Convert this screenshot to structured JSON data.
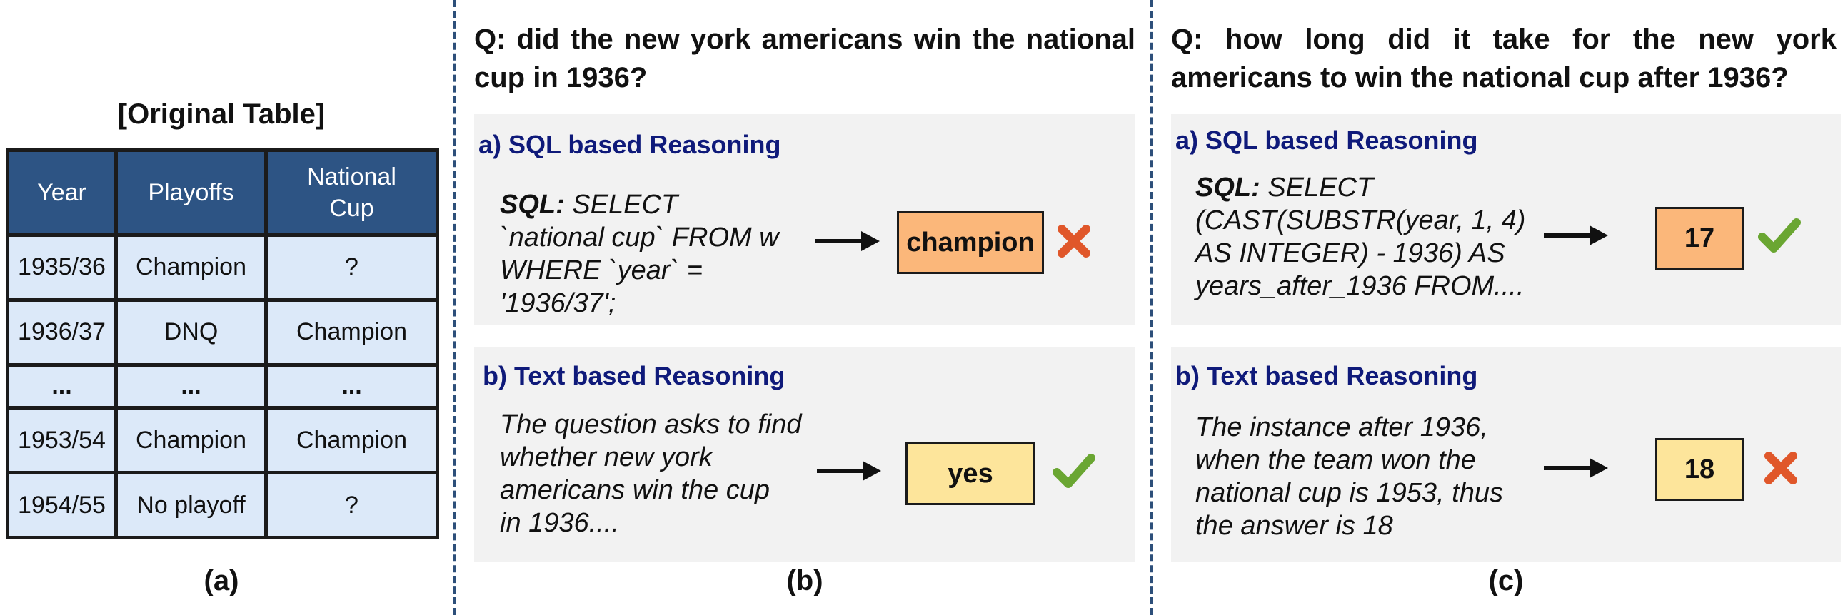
{
  "panel_a": {
    "title": "[Original Table]",
    "headers": [
      "Year",
      "Playoffs",
      "National Cup"
    ],
    "rows": [
      [
        "1935/36",
        "Champion",
        "?"
      ],
      [
        "1936/37",
        "DNQ",
        "Champion"
      ],
      [
        "...",
        "...",
        "..."
      ],
      [
        "1953/54",
        "Champion",
        "Champion"
      ],
      [
        "1954/55",
        "No playoff",
        "?"
      ]
    ],
    "caption": "(a)"
  },
  "panel_b": {
    "question": "Q: did the new york americans win the national cup in 1936?",
    "sql": {
      "title": "a) SQL based Reasoning",
      "prefix": "SQL:",
      "line1": " SELECT",
      "line2": "`national cup` FROM w",
      "line3": "WHERE `year` = '1936/37';",
      "answer": "champion",
      "result_icon": "cross-icon"
    },
    "text": {
      "title": "b) Text based Reasoning",
      "line1": "The question asks to find",
      "line2": "whether new york",
      "line3": "americans win the cup",
      "line4": "in 1936....",
      "answer": "yes",
      "result_icon": "check-icon"
    },
    "caption": "(b)"
  },
  "panel_c": {
    "question": "Q: how long did it take for the new york americans to win the national cup after 1936?",
    "sql": {
      "title": "a) SQL based Reasoning",
      "prefix": "SQL:",
      "line1": " SELECT",
      "line2": "(CAST(SUBSTR(year, 1, 4)",
      "line3": "AS INTEGER) - 1936) AS",
      "line4": "years_after_1936 FROM....",
      "answer": "17",
      "result_icon": "check-icon"
    },
    "text": {
      "title": "b) Text based Reasoning",
      "line1": "The instance after 1936,",
      "line2": "when the team won the",
      "line3": "national cup is 1953, thus",
      "line4": "the answer is 18",
      "answer": "18",
      "result_icon": "cross-icon"
    },
    "caption": "(c)"
  },
  "colors": {
    "table_header": "#2d5484",
    "table_cell": "#dce9f9",
    "box_background": "#f2f2f2",
    "title_blue": "#0f1a7a",
    "answer_orange": "#fbb77a",
    "answer_yellow": "#fde59b",
    "check_green": "#6aa632",
    "cross_red": "#e0572a",
    "divider": "#2d4f7a"
  }
}
